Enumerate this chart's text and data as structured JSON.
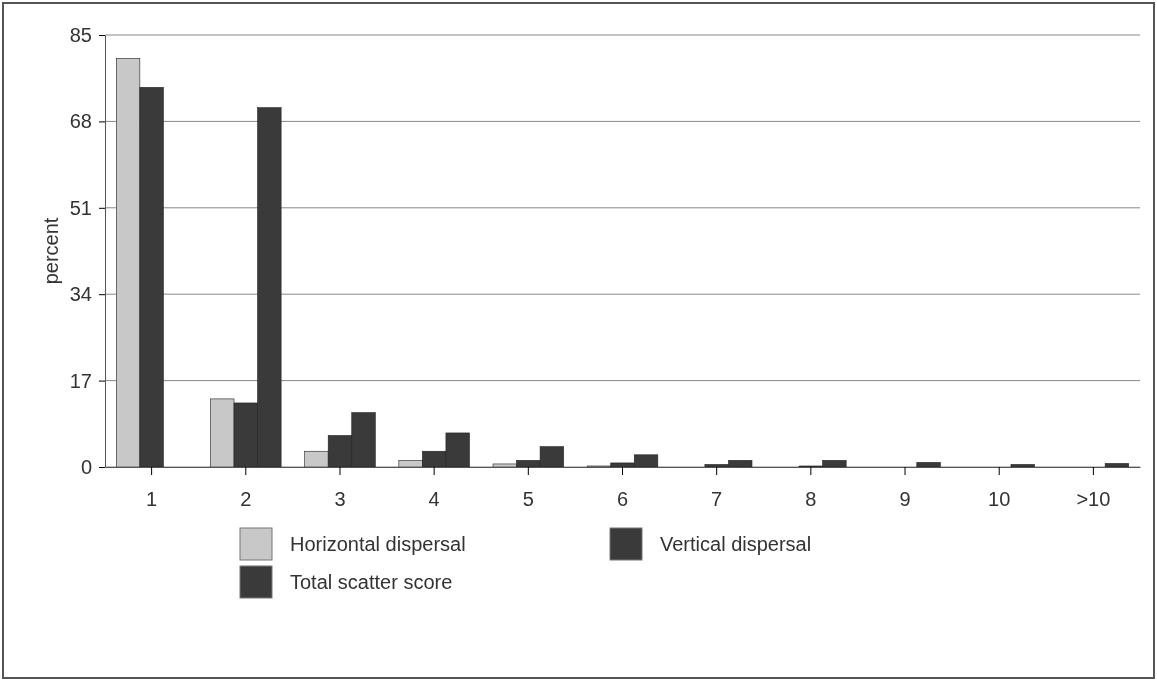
{
  "chart_data": {
    "type": "bar",
    "ylabel": "percent",
    "categories": [
      "1",
      "2",
      "3",
      "4",
      "5",
      "6",
      "7",
      "8",
      "9",
      "10",
      ">10"
    ],
    "series": [
      {
        "name": "Horizontal dispersal",
        "color": "#c8c8c8",
        "values": [
          80.4,
          13.4,
          3.1,
          1.3,
          0.6,
          0.2,
          null,
          null,
          0,
          0,
          0
        ]
      },
      {
        "name": "Vertical dispersal",
        "color": "#3a3a3a",
        "values": [
          74.7,
          12.6,
          6.2,
          3.1,
          1.3,
          0.8,
          0.5,
          0.2,
          null,
          null,
          null
        ]
      },
      {
        "name": "Total scatter score",
        "color": "#3a3a3a",
        "values": [
          0,
          70.7,
          10.7,
          6.7,
          4,
          2.4,
          1.3,
          1.3,
          0.9,
          0.5,
          0.7
        ]
      }
    ],
    "ylim": [
      0,
      85
    ],
    "yticks": [
      0,
      17,
      34,
      51,
      68,
      85
    ],
    "grid": "y",
    "legend": "bottom"
  }
}
